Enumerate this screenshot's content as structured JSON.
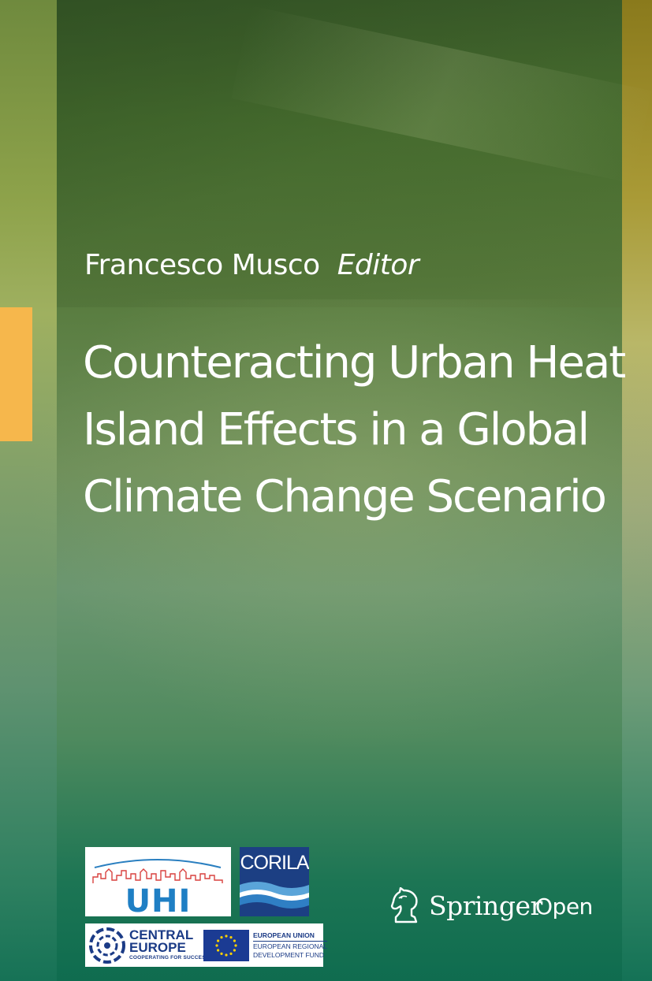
{
  "cover": {
    "editor_name": "Francesco Musco",
    "editor_role": "Editor",
    "title_lines": [
      "Counteracting Urban Heat",
      "Island Effects in a Global",
      "Climate Change Scenario"
    ],
    "colors": {
      "accent": "#f6b74c",
      "text": "#ffffff",
      "bg_top": "#3c5e2a",
      "bg_bottom": "#0f6c4f"
    }
  },
  "logos": {
    "uhi": {
      "text": "UHI",
      "icon": "city-skyline-icon"
    },
    "corila": {
      "text": "CORILA",
      "icon": "lagoon-waves-icon"
    },
    "central_europe": {
      "line1": "CENTRAL",
      "line2": "EUROPE",
      "tagline": "COOPERATING FOR SUCCESS.",
      "icon": "circle-stars-emblem-icon"
    },
    "eu": {
      "line1": "EUROPEAN UNION",
      "line2": "EUROPEAN REGIONAL",
      "line3": "DEVELOPMENT FUND",
      "icon": "eu-flag-icon"
    }
  },
  "publisher": {
    "name": "Springer",
    "series": "Open",
    "icon": "chess-knight-icon"
  }
}
